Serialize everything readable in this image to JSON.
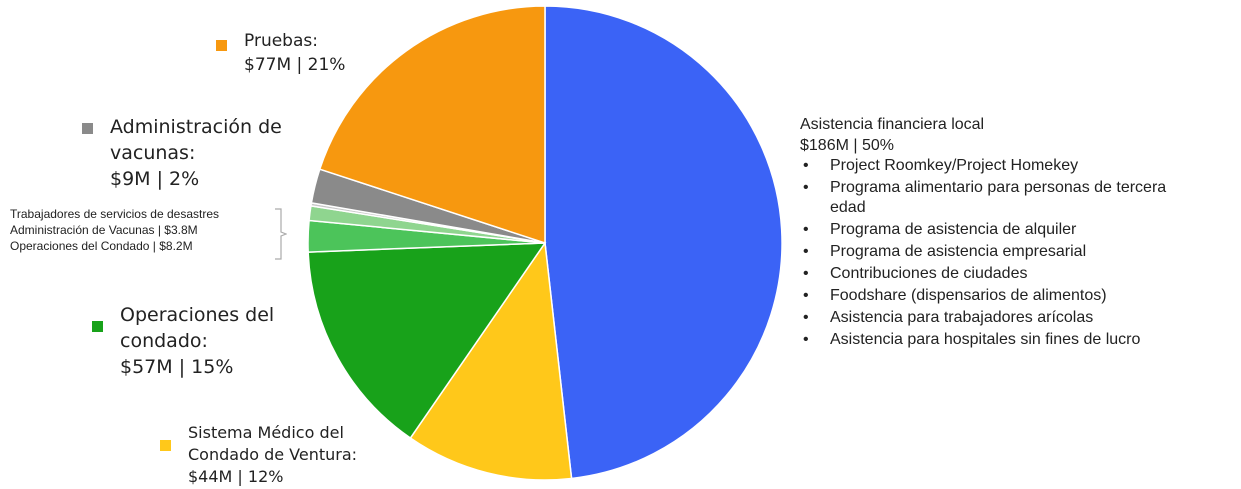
{
  "chart_data": {
    "type": "pie",
    "title": "",
    "slices": [
      {
        "label": "Asistencia financiera local",
        "value": 186,
        "percent": 50,
        "color": "#3b63f6"
      },
      {
        "label": "Sistema Médico del Condado de Ventura",
        "value": 44,
        "percent": 12,
        "color": "#ffc81a"
      },
      {
        "label": "Operaciones del condado",
        "value": 57,
        "percent": 15,
        "color": "#18a21a"
      },
      {
        "label": "Operaciones del Condado",
        "value": 8.2,
        "percent": 2.2,
        "color": "#4cc45a"
      },
      {
        "label": "Administración de Vacunas",
        "value": 3.8,
        "percent": 1,
        "color": "#8fd58f"
      },
      {
        "label": "Trabajadores de servicios de desastres",
        "value": 0.8,
        "percent": 0.2,
        "color": "#c8c8c8"
      },
      {
        "label": "Administración de vacunas",
        "value": 9,
        "percent": 2,
        "color": "#8a8a8a"
      },
      {
        "label": "Pruebas",
        "value": 77,
        "percent": 21,
        "color": "#f7980f"
      }
    ]
  },
  "labels": {
    "pruebas": {
      "name": "Pruebas:",
      "value": "$77M | 21%"
    },
    "admin_vacunas": {
      "line1": "Administración de",
      "line2": "vacunas:",
      "value": "$9M | 2%"
    },
    "small": {
      "line1": "Trabajadores de servicios de desastres",
      "line2": "Administración de Vacunas | $3.8M",
      "line3": "Operaciones del Condado | $8.2M"
    },
    "operaciones": {
      "line1": "Operaciones del",
      "line2": "condado:",
      "value": "$57M | 15%"
    },
    "sistema": {
      "line1": "Sistema Médico del",
      "line2": "Condado de Ventura:",
      "value": "$44M | 12%"
    },
    "asistencia": {
      "title": "Asistencia financiera local",
      "value": "$186M | 50%",
      "bullet": "•",
      "items": [
        "Project Roomkey/Project Homekey",
        "Programa alimentario para personas de tercera",
        "edad",
        "Programa de asistencia de alquiler",
        "Programa de asistencia empresarial",
        "Contribuciones de ciudades",
        "Foodshare (dispensarios de alimentos)",
        "Asistencia para trabajadores arícolas",
        "Asistencia para hospitales sin fines de lucro"
      ]
    }
  }
}
